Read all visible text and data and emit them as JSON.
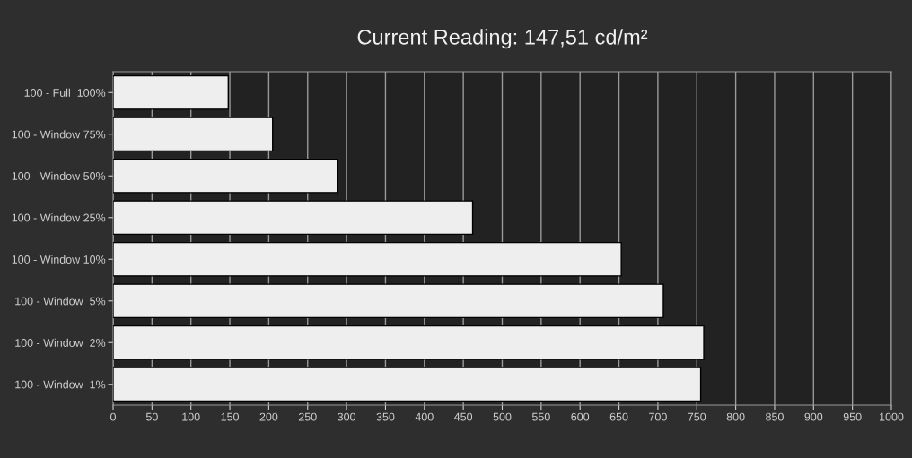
{
  "chart_data": {
    "type": "bar",
    "orientation": "horizontal",
    "title": "Current Reading: 147,51 cd/m²",
    "categories": [
      "100 - Full  100%",
      "100 - Window 75%",
      "100 - Window 50%",
      "100 - Window 25%",
      "100 - Window 10%",
      "100 - Window  5%",
      "100 - Window  2%",
      "100 - Window  1%"
    ],
    "values": [
      148,
      205,
      288,
      462,
      653,
      707,
      759,
      755
    ],
    "color": "#eeeeee",
    "xlim": [
      0,
      1000
    ],
    "xticks": [
      0,
      50,
      100,
      150,
      200,
      250,
      300,
      350,
      400,
      450,
      500,
      550,
      600,
      650,
      700,
      750,
      800,
      850,
      900,
      950,
      1000
    ],
    "grid": "x"
  }
}
